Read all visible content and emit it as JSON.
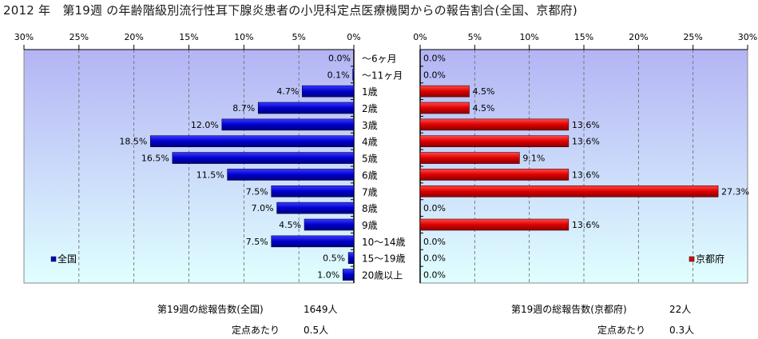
{
  "title": "2012 年　第19週 の年齢階級別流行性耳下腺炎患者の小児科定点医療機関からの報告割合(全国、京都府)",
  "chart_data": [
    {
      "type": "bar",
      "orientation": "horizontal",
      "direction": "right-to-left",
      "categories": [
        "～6ヶ月",
        "～11ヶ月",
        "1歳",
        "2歳",
        "3歳",
        "4歳",
        "5歳",
        "6歳",
        "7歳",
        "8歳",
        "9歳",
        "10～14歳",
        "15～19歳",
        "20歳以上"
      ],
      "series": [
        {
          "name": "全国",
          "color": "#0000cc",
          "values": [
            0.0,
            0.1,
            4.7,
            8.7,
            12.0,
            18.5,
            16.5,
            11.5,
            7.5,
            7.0,
            4.5,
            7.5,
            0.5,
            1.0
          ],
          "labels": [
            "0.0%",
            "0.1%",
            "4.7%",
            "8.7%",
            "12.0%",
            "18.5%",
            "16.5%",
            "11.5%",
            "7.5%",
            "7.0%",
            "4.5%",
            "7.5%",
            "0.5%",
            "1.0%"
          ]
        }
      ],
      "xlim": [
        0,
        30
      ],
      "xticks": [
        "30%",
        "25%",
        "20%",
        "15%",
        "10%",
        "5%",
        "0%"
      ],
      "legend": "bottom-left",
      "grid": true
    },
    {
      "type": "bar",
      "orientation": "horizontal",
      "direction": "left-to-right",
      "categories": [
        "～6ヶ月",
        "～11ヶ月",
        "1歳",
        "2歳",
        "3歳",
        "4歳",
        "5歳",
        "6歳",
        "7歳",
        "8歳",
        "9歳",
        "10～14歳",
        "15～19歳",
        "20歳以上"
      ],
      "series": [
        {
          "name": "京都府",
          "color": "#dd0000",
          "values": [
            0.0,
            0.0,
            4.5,
            4.5,
            13.6,
            13.6,
            9.1,
            13.6,
            27.3,
            0.0,
            13.6,
            0.0,
            0.0,
            0.0
          ],
          "labels": [
            "0.0%",
            "0.0%",
            "4.5%",
            "4.5%",
            "13.6%",
            "13.6%",
            "9.1%",
            "13.6%",
            "27.3%",
            "0.0%",
            "13.6%",
            "0.0%",
            "0.0%",
            "0.0%"
          ]
        }
      ],
      "xlim": [
        0,
        30
      ],
      "xticks": [
        "0%",
        "5%",
        "10%",
        "15%",
        "20%",
        "25%",
        "30%"
      ],
      "legend": "bottom-right",
      "grid": true
    }
  ],
  "footer": {
    "national_total_label": "第19週の総報告数(全国)",
    "national_total_value": "1649人",
    "national_per_label": "定点あたり",
    "national_per_value": "0.5人",
    "kyoto_total_label": "第19週の総報告数(京都府)",
    "kyoto_total_value": "22人",
    "kyoto_per_label": "定点あたり",
    "kyoto_per_value": "0.3人"
  },
  "colors": {
    "plot_bg_top": "#b4b4f4",
    "plot_bg_bottom": "#e0ffff",
    "national": "#0000cc",
    "kyoto": "#dd0000"
  }
}
